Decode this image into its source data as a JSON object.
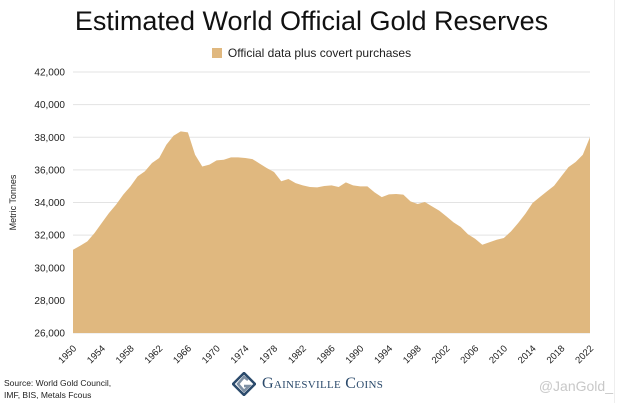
{
  "chart_data": {
    "type": "area",
    "title": "Estimated World Official Gold Reserves",
    "ylabel": "Metric Tonnes",
    "xlabel": "",
    "ylim": [
      26000,
      42000
    ],
    "xlim": [
      1950,
      2022
    ],
    "yticks": [
      "26,000",
      "28,000",
      "30,000",
      "32,000",
      "34,000",
      "36,000",
      "38,000",
      "40,000",
      "42,000"
    ],
    "xticks": [
      "1950",
      "1954",
      "1958",
      "1962",
      "1966",
      "1970",
      "1974",
      "1978",
      "1982",
      "1986",
      "1990",
      "1994",
      "1998",
      "2002",
      "2006",
      "2010",
      "2014",
      "2018",
      "2022"
    ],
    "grid": true,
    "legend_position": "top-center",
    "series": [
      {
        "name": "Official data plus covert purchases",
        "color": "#e0b87f",
        "x": [
          1950,
          1951,
          1952,
          1953,
          1954,
          1955,
          1956,
          1957,
          1958,
          1959,
          1960,
          1961,
          1962,
          1963,
          1964,
          1965,
          1966,
          1967,
          1968,
          1969,
          1970,
          1971,
          1972,
          1973,
          1974,
          1975,
          1976,
          1977,
          1978,
          1979,
          1980,
          1981,
          1982,
          1983,
          1984,
          1985,
          1986,
          1987,
          1988,
          1989,
          1990,
          1991,
          1992,
          1993,
          1994,
          1995,
          1996,
          1997,
          1998,
          1999,
          2000,
          2001,
          2002,
          2003,
          2004,
          2005,
          2006,
          2007,
          2008,
          2009,
          2010,
          2011,
          2012,
          2013,
          2014,
          2015,
          2016,
          2017,
          2018,
          2019,
          2020,
          2021,
          2022
        ],
        "values": [
          31100,
          31350,
          31620,
          32130,
          32740,
          33350,
          33870,
          34480,
          34990,
          35600,
          35910,
          36420,
          36730,
          37540,
          38090,
          38360,
          38300,
          36930,
          36210,
          36320,
          36580,
          36620,
          36770,
          36770,
          36730,
          36660,
          36380,
          36110,
          35870,
          35300,
          35440,
          35190,
          35050,
          34950,
          34930,
          35010,
          35050,
          34950,
          35230,
          35050,
          34990,
          34990,
          34620,
          34330,
          34500,
          34520,
          34480,
          34070,
          33910,
          34030,
          33760,
          33500,
          33150,
          32780,
          32500,
          32050,
          31780,
          31410,
          31560,
          31720,
          31820,
          32230,
          32740,
          33310,
          33970,
          34330,
          34680,
          35030,
          35600,
          36170,
          36480,
          36930,
          38010
        ]
      }
    ]
  },
  "footer": {
    "source_line1": "Source: World Gold Council,",
    "source_line2": "IMF, BIS, Metals Fcous",
    "logo_text": "Gainesville Coins",
    "watermark": "@JanGold_"
  }
}
